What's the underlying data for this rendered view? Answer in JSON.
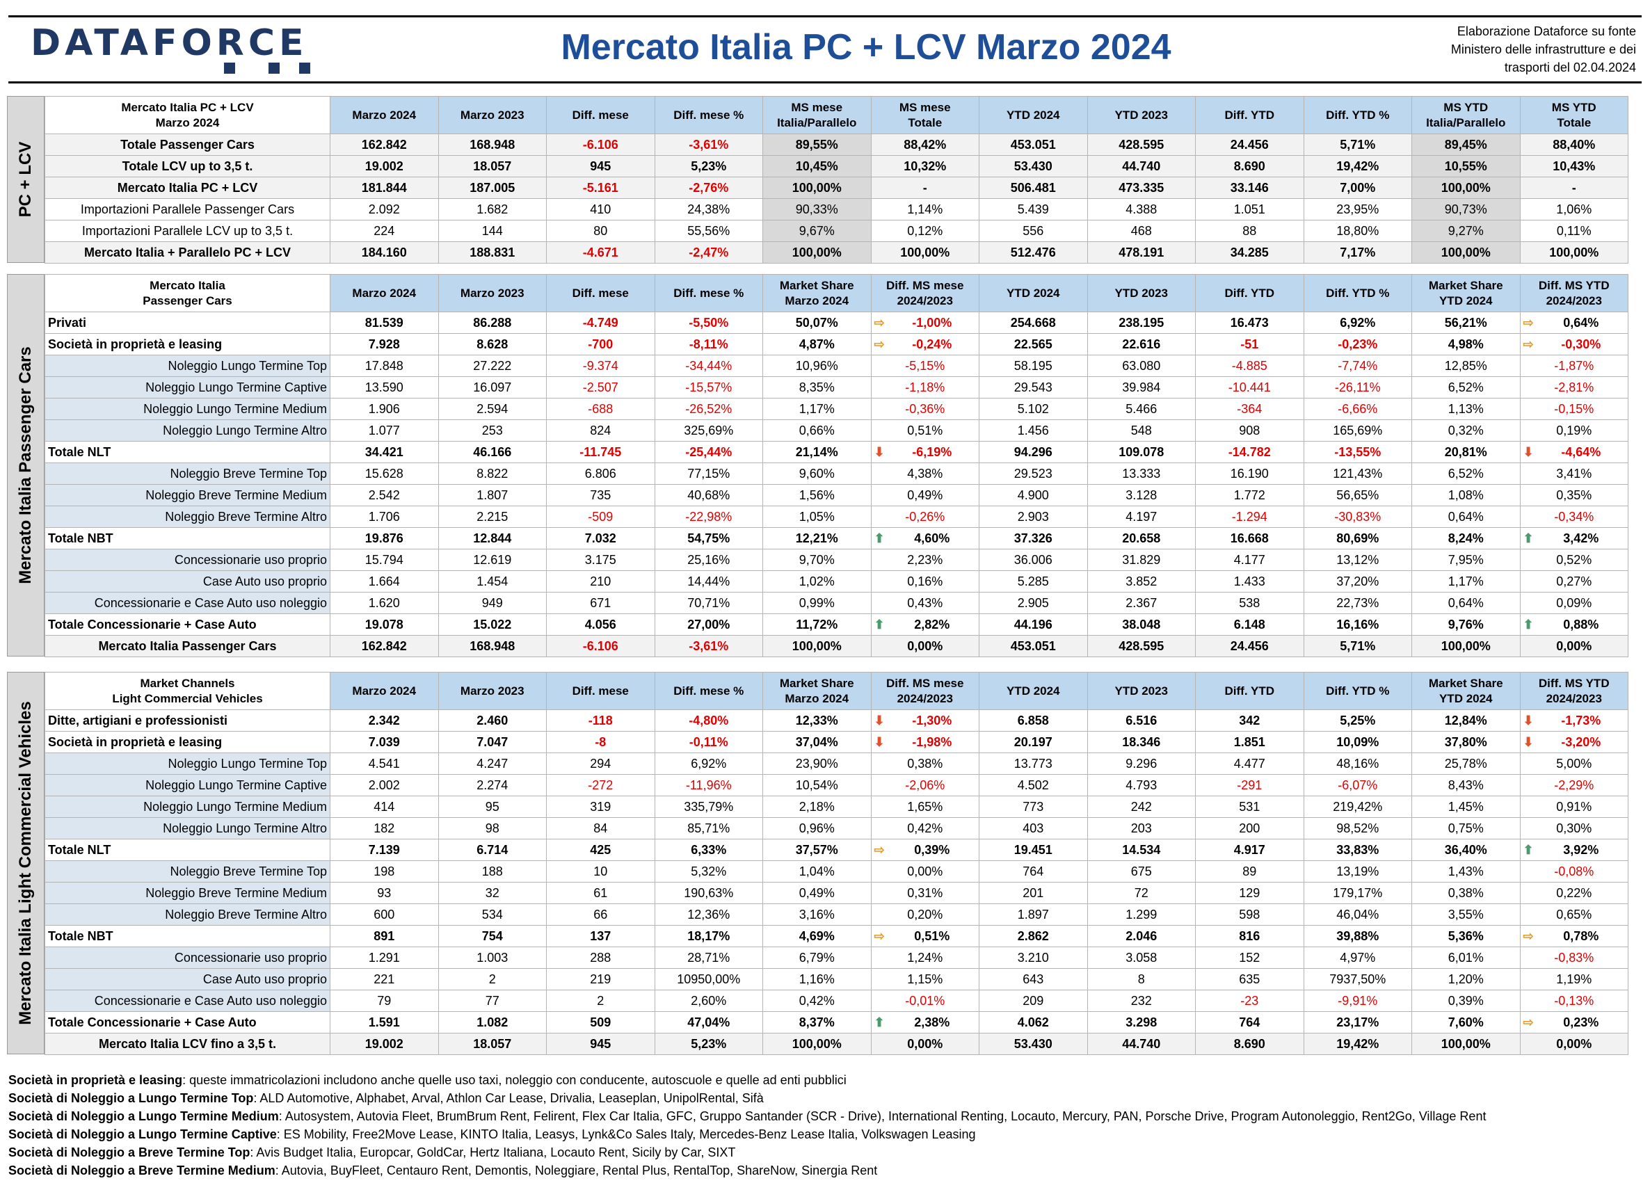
{
  "header": {
    "logo": "DATAFORCE",
    "title": "Mercato Italia PC + LCV Marzo 2024",
    "source": [
      "Elaborazione Dataforce su fonte",
      "Ministero delle infrastrutture e dei",
      "trasporti del 02.04.2024"
    ]
  },
  "cols1": [
    "Marzo 2024",
    "Marzo 2023",
    "Diff. mese",
    "Diff. mese %",
    "MS mese\nItalia/Parallelo",
    "MS mese\nTotale",
    "YTD 2024",
    "YTD 2023",
    "Diff. YTD",
    "Diff. YTD %",
    "MS YTD\nItalia/Parallelo",
    "MS YTD\nTotale"
  ],
  "cols2": [
    "Marzo 2024",
    "Marzo 2023",
    "Diff. mese",
    "Diff. mese %",
    "Market Share\nMarzo 2024",
    "Diff. MS mese\n2024/2023",
    "YTD 2024",
    "YTD 2023",
    "Diff. YTD",
    "Diff. YTD %",
    "Market Share\nYTD 2024",
    "Diff. MS YTD\n2024/2023"
  ],
  "s1": {
    "side": "PC + LCV",
    "head": "Mercato Italia PC + LCV\nMarzo 2024",
    "rows": [
      {
        "l": "Totale Passenger Cars",
        "t": "gray",
        "v": [
          "162.842",
          "168.948",
          "-6.106",
          "-3,61%",
          "89,55%",
          "88,42%",
          "453.051",
          "428.595",
          "24.456",
          "5,71%",
          "89,45%",
          "88,40%"
        ]
      },
      {
        "l": "Totale LCV up to 3,5 t.",
        "t": "gray",
        "v": [
          "19.002",
          "18.057",
          "945",
          "5,23%",
          "10,45%",
          "10,32%",
          "53.430",
          "44.740",
          "8.690",
          "19,42%",
          "10,55%",
          "10,43%"
        ]
      },
      {
        "l": "Mercato Italia PC + LCV",
        "t": "gray",
        "v": [
          "181.844",
          "187.005",
          "-5.161",
          "-2,76%",
          "100,00%",
          "-",
          "506.481",
          "473.335",
          "33.146",
          "7,00%",
          "100,00%",
          "-"
        ]
      },
      {
        "l": "Importazioni Parallele Passenger Cars",
        "t": "w",
        "v": [
          "2.092",
          "1.682",
          "410",
          "24,38%",
          "90,33%",
          "1,14%",
          "5.439",
          "4.388",
          "1.051",
          "23,95%",
          "90,73%",
          "1,06%"
        ]
      },
      {
        "l": "Importazioni Parallele LCV up to 3,5 t.",
        "t": "w",
        "v": [
          "224",
          "144",
          "80",
          "55,56%",
          "9,67%",
          "0,12%",
          "556",
          "468",
          "88",
          "18,80%",
          "9,27%",
          "0,11%"
        ]
      },
      {
        "l": "Mercato Italia + Parallelo PC + LCV",
        "t": "gray",
        "v": [
          "184.160",
          "188.831",
          "-4.671",
          "-2,47%",
          "100,00%",
          "100,00%",
          "512.476",
          "478.191",
          "34.285",
          "7,17%",
          "100,00%",
          "100,00%"
        ]
      }
    ]
  },
  "s2": {
    "side": "Mercato Italia Passenger Cars",
    "head": "Mercato Italia\nPassenger Cars",
    "rows": [
      {
        "l": "Privati",
        "t": "b",
        "v": [
          "81.539",
          "86.288",
          "-4.749",
          "-5,50%",
          "50,07%",
          "-1,00%",
          "254.668",
          "238.195",
          "16.473",
          "6,92%",
          "56,21%",
          "0,64%"
        ],
        "a1": "right",
        "a2": "right"
      },
      {
        "l": "Società in proprietà e leasing",
        "t": "b",
        "v": [
          "7.928",
          "8.628",
          "-700",
          "-8,11%",
          "4,87%",
          "-0,24%",
          "22.565",
          "22.616",
          "-51",
          "-0,23%",
          "4,98%",
          "-0,30%"
        ],
        "a1": "right",
        "a2": "right"
      },
      {
        "l": "Noleggio Lungo Termine Top",
        "t": "i",
        "v": [
          "17.848",
          "27.222",
          "-9.374",
          "-34,44%",
          "10,96%",
          "-5,15%",
          "58.195",
          "63.080",
          "-4.885",
          "-7,74%",
          "12,85%",
          "-1,87%"
        ]
      },
      {
        "l": "Noleggio Lungo Termine Captive",
        "t": "i",
        "v": [
          "13.590",
          "16.097",
          "-2.507",
          "-15,57%",
          "8,35%",
          "-1,18%",
          "29.543",
          "39.984",
          "-10.441",
          "-26,11%",
          "6,52%",
          "-2,81%"
        ]
      },
      {
        "l": "Noleggio Lungo Termine Medium",
        "t": "i",
        "v": [
          "1.906",
          "2.594",
          "-688",
          "-26,52%",
          "1,17%",
          "-0,36%",
          "5.102",
          "5.466",
          "-364",
          "-6,66%",
          "1,13%",
          "-0,15%"
        ]
      },
      {
        "l": "Noleggio Lungo Termine Altro",
        "t": "i",
        "v": [
          "1.077",
          "253",
          "824",
          "325,69%",
          "0,66%",
          "0,51%",
          "1.456",
          "548",
          "908",
          "165,69%",
          "0,32%",
          "0,19%"
        ]
      },
      {
        "l": "Totale NLT",
        "t": "b",
        "v": [
          "34.421",
          "46.166",
          "-11.745",
          "-25,44%",
          "21,14%",
          "-6,19%",
          "94.296",
          "109.078",
          "-14.782",
          "-13,55%",
          "20,81%",
          "-4,64%"
        ],
        "a1": "down",
        "a2": "down"
      },
      {
        "l": "Noleggio Breve Termine Top",
        "t": "i",
        "v": [
          "15.628",
          "8.822",
          "6.806",
          "77,15%",
          "9,60%",
          "4,38%",
          "29.523",
          "13.333",
          "16.190",
          "121,43%",
          "6,52%",
          "3,41%"
        ]
      },
      {
        "l": "Noleggio Breve Termine Medium",
        "t": "i",
        "v": [
          "2.542",
          "1.807",
          "735",
          "40,68%",
          "1,56%",
          "0,49%",
          "4.900",
          "3.128",
          "1.772",
          "56,65%",
          "1,08%",
          "0,35%"
        ]
      },
      {
        "l": "Noleggio Breve Termine Altro",
        "t": "i",
        "v": [
          "1.706",
          "2.215",
          "-509",
          "-22,98%",
          "1,05%",
          "-0,26%",
          "2.903",
          "4.197",
          "-1.294",
          "-30,83%",
          "0,64%",
          "-0,34%"
        ]
      },
      {
        "l": "Totale NBT",
        "t": "b",
        "v": [
          "19.876",
          "12.844",
          "7.032",
          "54,75%",
          "12,21%",
          "4,60%",
          "37.326",
          "20.658",
          "16.668",
          "80,69%",
          "8,24%",
          "3,42%"
        ],
        "a1": "up",
        "a2": "up"
      },
      {
        "l": "Concessionarie uso proprio",
        "t": "i",
        "v": [
          "15.794",
          "12.619",
          "3.175",
          "25,16%",
          "9,70%",
          "2,23%",
          "36.006",
          "31.829",
          "4.177",
          "13,12%",
          "7,95%",
          "0,52%"
        ]
      },
      {
        "l": "Case Auto uso proprio",
        "t": "i",
        "v": [
          "1.664",
          "1.454",
          "210",
          "14,44%",
          "1,02%",
          "0,16%",
          "5.285",
          "3.852",
          "1.433",
          "37,20%",
          "1,17%",
          "0,27%"
        ]
      },
      {
        "l": "Concessionarie e Case Auto uso noleggio",
        "t": "i",
        "v": [
          "1.620",
          "949",
          "671",
          "70,71%",
          "0,99%",
          "0,43%",
          "2.905",
          "2.367",
          "538",
          "22,73%",
          "0,64%",
          "0,09%"
        ]
      },
      {
        "l": "Totale Concessionarie + Case Auto",
        "t": "b",
        "v": [
          "19.078",
          "15.022",
          "4.056",
          "27,00%",
          "11,72%",
          "2,82%",
          "44.196",
          "38.048",
          "6.148",
          "16,16%",
          "9,76%",
          "0,88%"
        ],
        "a1": "up",
        "a2": "up"
      },
      {
        "l": "Mercato Italia Passenger Cars",
        "t": "gray",
        "v": [
          "162.842",
          "168.948",
          "-6.106",
          "-3,61%",
          "100,00%",
          "0,00%",
          "453.051",
          "428.595",
          "24.456",
          "5,71%",
          "100,00%",
          "0,00%"
        ]
      }
    ]
  },
  "s3": {
    "side": "Mercato Italia Light Commercial Vehicles",
    "head": "Market Channels\nLight Commercial Vehicles",
    "rows": [
      {
        "l": "Ditte, artigiani e professionisti",
        "t": "b",
        "v": [
          "2.342",
          "2.460",
          "-118",
          "-4,80%",
          "12,33%",
          "-1,30%",
          "6.858",
          "6.516",
          "342",
          "5,25%",
          "12,84%",
          "-1,73%"
        ],
        "a1": "down",
        "a2": "down"
      },
      {
        "l": "Società in proprietà e leasing",
        "t": "b",
        "v": [
          "7.039",
          "7.047",
          "-8",
          "-0,11%",
          "37,04%",
          "-1,98%",
          "20.197",
          "18.346",
          "1.851",
          "10,09%",
          "37,80%",
          "-3,20%"
        ],
        "a1": "down",
        "a2": "down"
      },
      {
        "l": "Noleggio Lungo Termine Top",
        "t": "i",
        "v": [
          "4.541",
          "4.247",
          "294",
          "6,92%",
          "23,90%",
          "0,38%",
          "13.773",
          "9.296",
          "4.477",
          "48,16%",
          "25,78%",
          "5,00%"
        ]
      },
      {
        "l": "Noleggio Lungo Termine Captive",
        "t": "i",
        "v": [
          "2.002",
          "2.274",
          "-272",
          "-11,96%",
          "10,54%",
          "-2,06%",
          "4.502",
          "4.793",
          "-291",
          "-6,07%",
          "8,43%",
          "-2,29%"
        ]
      },
      {
        "l": "Noleggio Lungo Termine Medium",
        "t": "i",
        "v": [
          "414",
          "95",
          "319",
          "335,79%",
          "2,18%",
          "1,65%",
          "773",
          "242",
          "531",
          "219,42%",
          "1,45%",
          "0,91%"
        ]
      },
      {
        "l": "Noleggio Lungo Termine Altro",
        "t": "i",
        "v": [
          "182",
          "98",
          "84",
          "85,71%",
          "0,96%",
          "0,42%",
          "403",
          "203",
          "200",
          "98,52%",
          "0,75%",
          "0,30%"
        ]
      },
      {
        "l": "Totale NLT",
        "t": "b",
        "v": [
          "7.139",
          "6.714",
          "425",
          "6,33%",
          "37,57%",
          "0,39%",
          "19.451",
          "14.534",
          "4.917",
          "33,83%",
          "36,40%",
          "3,92%"
        ],
        "a1": "right",
        "a2": "up"
      },
      {
        "l": "Noleggio Breve Termine Top",
        "t": "i",
        "v": [
          "198",
          "188",
          "10",
          "5,32%",
          "1,04%",
          "0,00%",
          "764",
          "675",
          "89",
          "13,19%",
          "1,43%",
          "-0,08%"
        ]
      },
      {
        "l": "Noleggio Breve Termine Medium",
        "t": "i",
        "v": [
          "93",
          "32",
          "61",
          "190,63%",
          "0,49%",
          "0,31%",
          "201",
          "72",
          "129",
          "179,17%",
          "0,38%",
          "0,22%"
        ]
      },
      {
        "l": "Noleggio Breve Termine Altro",
        "t": "i",
        "v": [
          "600",
          "534",
          "66",
          "12,36%",
          "3,16%",
          "0,20%",
          "1.897",
          "1.299",
          "598",
          "46,04%",
          "3,55%",
          "0,65%"
        ]
      },
      {
        "l": "Totale NBT",
        "t": "b",
        "v": [
          "891",
          "754",
          "137",
          "18,17%",
          "4,69%",
          "0,51%",
          "2.862",
          "2.046",
          "816",
          "39,88%",
          "5,36%",
          "0,78%"
        ],
        "a1": "right",
        "a2": "right"
      },
      {
        "l": "Concessionarie uso proprio",
        "t": "i",
        "v": [
          "1.291",
          "1.003",
          "288",
          "28,71%",
          "6,79%",
          "1,24%",
          "3.210",
          "3.058",
          "152",
          "4,97%",
          "6,01%",
          "-0,83%"
        ]
      },
      {
        "l": "Case Auto uso proprio",
        "t": "i",
        "v": [
          "221",
          "2",
          "219",
          "10950,00%",
          "1,16%",
          "1,15%",
          "643",
          "8",
          "635",
          "7937,50%",
          "1,20%",
          "1,19%"
        ]
      },
      {
        "l": "Concessionarie e Case Auto uso noleggio",
        "t": "i",
        "v": [
          "79",
          "77",
          "2",
          "2,60%",
          "0,42%",
          "-0,01%",
          "209",
          "232",
          "-23",
          "-9,91%",
          "0,39%",
          "-0,13%"
        ]
      },
      {
        "l": "Totale Concessionarie + Case Auto",
        "t": "b",
        "v": [
          "1.591",
          "1.082",
          "509",
          "47,04%",
          "8,37%",
          "2,38%",
          "4.062",
          "3.298",
          "764",
          "23,17%",
          "7,60%",
          "0,23%"
        ],
        "a1": "up",
        "a2": "right"
      },
      {
        "l": "Mercato Italia LCV fino a 3,5 t.",
        "t": "gray",
        "v": [
          "19.002",
          "18.057",
          "945",
          "5,23%",
          "100,00%",
          "0,00%",
          "53.430",
          "44.740",
          "8.690",
          "19,42%",
          "100,00%",
          "0,00%"
        ]
      }
    ]
  },
  "notes": [
    {
      "b": "Società in proprietà e leasing",
      "t": ": queste immatricolazioni includono anche quelle uso taxi, noleggio con conducente, autoscuole e quelle ad enti pubblici"
    },
    {
      "b": "Società di Noleggio a Lungo Termine Top",
      "t": ": ALD Automotive, Alphabet, Arval, Athlon Car Lease, Drivalia, Leaseplan, UnipolRental, Sifà"
    },
    {
      "b": "Società di Noleggio a Lungo Termine Medium",
      "t": ": Autosystem, Autovia Fleet, BrumBrum Rent, Felirent, Flex Car Italia, GFC, Gruppo Santander (SCR - Drive), International Renting, Locauto, Mercury, PAN, Porsche Drive, Program Autonoleggio, Rent2Go, Village Rent"
    },
    {
      "b": "Società di Noleggio a Lungo Termine Captive",
      "t": ": ES Mobility, Free2Move Lease, KINTO Italia, Leasys, Lynk&Co Sales Italy, Mercedes-Benz Lease Italia, Volkswagen Leasing"
    },
    {
      "b": "Società di Noleggio a Breve Termine Top",
      "t": ": Avis Budget Italia, Europcar, GoldCar, Hertz Italiana, Locauto Rent, Sicily by Car, SIXT"
    },
    {
      "b": "Società di Noleggio a Breve Termine Medium",
      "t": ": Autovia, BuyFleet, Centauro Rent, Demontis, Noleggiare, Rental Plus, RentalTop, ShareNow, Sinergia Rent"
    }
  ]
}
